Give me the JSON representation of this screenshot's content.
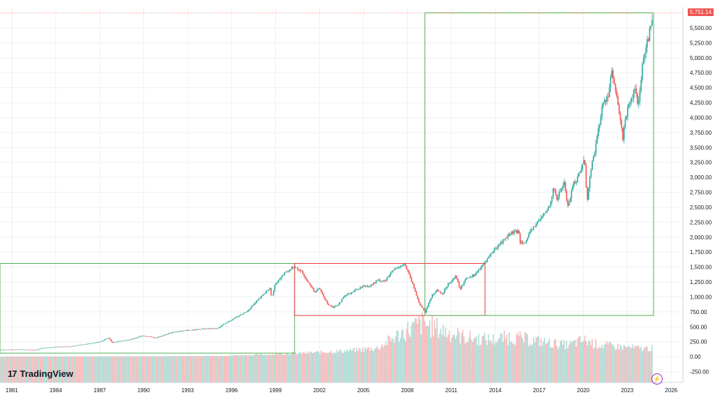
{
  "brand": {
    "name": "TradingView",
    "mark": "17"
  },
  "last_price": {
    "label": "5,751.14",
    "value": 5751.14,
    "color": "#ef5350"
  },
  "icons": {
    "bolt": "lightning-icon"
  },
  "chart_data": {
    "type": "candlestick",
    "x_tick_labels": [
      "1981",
      "1984",
      "1987",
      "1990",
      "1993",
      "1996",
      "1999",
      "2002",
      "2005",
      "2008",
      "2011",
      "2014",
      "2017",
      "2020",
      "2023",
      "2026"
    ],
    "y_tick_labels": [
      "5,500.00",
      "5,250.00",
      "5,000.00",
      "4,750.00",
      "4,500.00",
      "4,250.00",
      "4,000.00",
      "3,750.00",
      "3,500.00",
      "3,250.00",
      "3,000.00",
      "2,750.00",
      "2,500.00",
      "2,250.00",
      "2,000.00",
      "1,750.00",
      "1,500.00",
      "1,250.00",
      "1,000.00",
      "750.00",
      "500.00",
      "250.00",
      "0.00",
      "-250.00"
    ],
    "ylim": [
      -430,
      5850
    ],
    "xlim": [
      1980.2,
      2026.8
    ],
    "series_close": [
      [
        1980.0,
        108
      ],
      [
        1981.0,
        122
      ],
      [
        1982.0,
        120
      ],
      [
        1982.6,
        110
      ],
      [
        1983.0,
        140
      ],
      [
        1984.0,
        165
      ],
      [
        1985.0,
        170
      ],
      [
        1986.0,
        210
      ],
      [
        1987.0,
        245
      ],
      [
        1987.6,
        320
      ],
      [
        1987.85,
        235
      ],
      [
        1988.5,
        265
      ],
      [
        1989.0,
        280
      ],
      [
        1989.9,
        350
      ],
      [
        1990.6,
        330
      ],
      [
        1990.85,
        305
      ],
      [
        1991.0,
        330
      ],
      [
        1992.0,
        410
      ],
      [
        1993.0,
        440
      ],
      [
        1994.0,
        465
      ],
      [
        1995.0,
        470
      ],
      [
        1996.0,
        620
      ],
      [
        1997.0,
        750
      ],
      [
        1997.9,
        970
      ],
      [
        1998.6,
        1150
      ],
      [
        1998.75,
        990
      ],
      [
        1999.0,
        1230
      ],
      [
        1999.5,
        1370
      ],
      [
        2000.2,
        1500
      ],
      [
        2000.8,
        1420
      ],
      [
        2001.2,
        1250
      ],
      [
        2001.7,
        1080
      ],
      [
        2002.0,
        1140
      ],
      [
        2002.5,
        900
      ],
      [
        2002.9,
        830
      ],
      [
        2003.2,
        860
      ],
      [
        2003.8,
        1030
      ],
      [
        2004.5,
        1120
      ],
      [
        2005.0,
        1180
      ],
      [
        2005.5,
        1190
      ],
      [
        2006.0,
        1280
      ],
      [
        2006.5,
        1270
      ],
      [
        2007.0,
        1440
      ],
      [
        2007.5,
        1520
      ],
      [
        2007.8,
        1550
      ],
      [
        2008.2,
        1320
      ],
      [
        2008.8,
        900
      ],
      [
        2009.2,
        740
      ],
      [
        2009.6,
        990
      ],
      [
        2010.0,
        1120
      ],
      [
        2010.4,
        1050
      ],
      [
        2010.8,
        1230
      ],
      [
        2011.3,
        1340
      ],
      [
        2011.6,
        1130
      ],
      [
        2012.0,
        1320
      ],
      [
        2012.5,
        1360
      ],
      [
        2013.0,
        1480
      ],
      [
        2013.6,
        1690
      ],
      [
        2014.0,
        1810
      ],
      [
        2014.6,
        1960
      ],
      [
        2015.0,
        2060
      ],
      [
        2015.6,
        2100
      ],
      [
        2015.7,
        1920
      ],
      [
        2016.1,
        1940
      ],
      [
        2016.6,
        2170
      ],
      [
        2017.0,
        2280
      ],
      [
        2017.6,
        2470
      ],
      [
        2018.0,
        2820
      ],
      [
        2018.2,
        2640
      ],
      [
        2018.7,
        2920
      ],
      [
        2018.95,
        2500
      ],
      [
        2019.3,
        2880
      ],
      [
        2019.6,
        2980
      ],
      [
        2019.95,
        3230
      ],
      [
        2020.1,
        3300
      ],
      [
        2020.25,
        2580
      ],
      [
        2020.5,
        3100
      ],
      [
        2020.9,
        3600
      ],
      [
        2021.3,
        4180
      ],
      [
        2021.7,
        4400
      ],
      [
        2021.95,
        4770
      ],
      [
        2022.4,
        4150
      ],
      [
        2022.7,
        3650
      ],
      [
        2022.8,
        3900
      ],
      [
        2023.0,
        4100
      ],
      [
        2023.5,
        4450
      ],
      [
        2023.8,
        4200
      ],
      [
        2024.0,
        4770
      ],
      [
        2024.3,
        5250
      ],
      [
        2024.5,
        5400
      ],
      [
        2024.6,
        5500
      ],
      [
        2024.7,
        5620
      ],
      [
        2024.75,
        5751.14
      ]
    ],
    "volume_profile": [
      [
        1980,
        2
      ],
      [
        1985,
        5
      ],
      [
        1990,
        8
      ],
      [
        1995,
        15
      ],
      [
        1997,
        30
      ],
      [
        1999,
        45
      ],
      [
        2000,
        60
      ],
      [
        2002,
        80
      ],
      [
        2004,
        110
      ],
      [
        2006,
        160
      ],
      [
        2007,
        330
      ],
      [
        2008,
        480
      ],
      [
        2009,
        600
      ],
      [
        2010,
        520
      ],
      [
        2011,
        420
      ],
      [
        2012,
        350
      ],
      [
        2013,
        320
      ],
      [
        2014,
        310
      ],
      [
        2015,
        360
      ],
      [
        2016,
        320
      ],
      [
        2017,
        280
      ],
      [
        2018,
        240
      ],
      [
        2019,
        210
      ],
      [
        2020,
        300
      ],
      [
        2021,
        220
      ],
      [
        2022,
        190
      ],
      [
        2023,
        170
      ],
      [
        2024,
        150
      ]
    ],
    "boxes": [
      {
        "name": "box-green-early",
        "x0": 1980.2,
        "x1": 2000.3,
        "y0": 60,
        "y1": 1560,
        "color": "#4caf50"
      },
      {
        "name": "box-red-middle",
        "x0": 2000.3,
        "x1": 2013.3,
        "y0": 690,
        "y1": 1560,
        "color": "#e53935"
      },
      {
        "name": "box-green-late",
        "x0": 2009.2,
        "x1": 2024.8,
        "y0": 690,
        "y1": 5751.14,
        "color": "#4caf50"
      }
    ],
    "colors": {
      "up": "#26a69a",
      "down": "#ef5350",
      "grid": "#eef0f3"
    }
  }
}
